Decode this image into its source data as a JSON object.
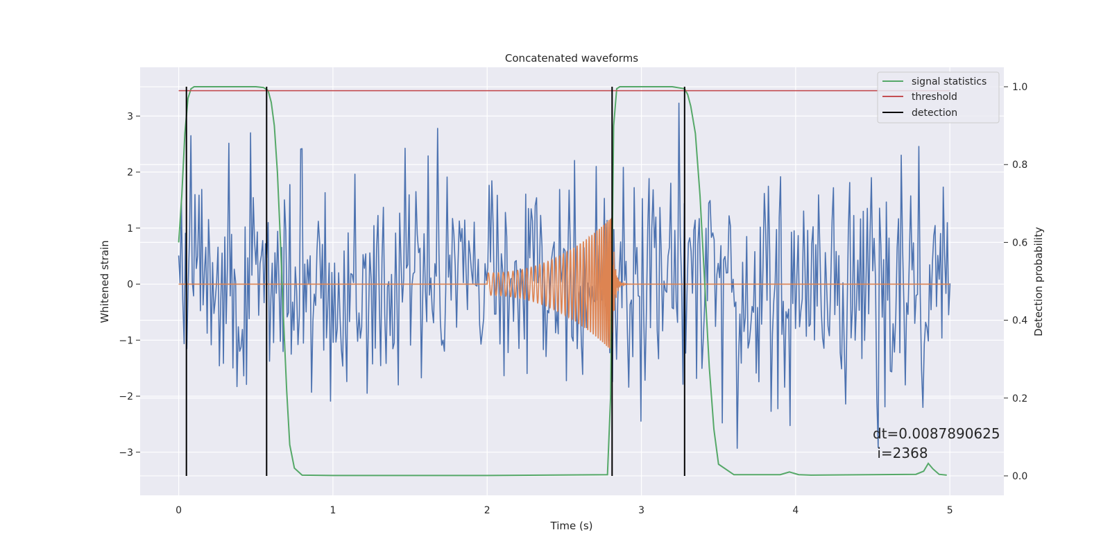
{
  "chart_data": {
    "type": "line",
    "title": "Concatenated waveforms",
    "xlabel": "Time (s)",
    "ylabel_left": "Whitened strain",
    "ylabel_right": "Detection probability",
    "xlim": [
      -0.25,
      5.35
    ],
    "ylim_left": [
      -3.77,
      3.87
    ],
    "ylim_right": [
      -0.05,
      1.05
    ],
    "x_ticks": [
      0,
      1,
      2,
      3,
      4,
      5
    ],
    "y_ticks_left": [
      -3,
      -2,
      -1,
      0,
      1,
      2,
      3
    ],
    "y_ticks_right": [
      0.0,
      0.2,
      0.4,
      0.6,
      0.8,
      1.0
    ],
    "x_tick_labels": [
      "0",
      "1",
      "2",
      "3",
      "4",
      "5"
    ],
    "y_tick_labels_left": [
      "−3",
      "−2",
      "−1",
      "0",
      "1",
      "2",
      "3"
    ],
    "y_tick_labels_right": [
      "0.0",
      "0.2",
      "0.4",
      "0.6",
      "0.8",
      "1.0"
    ],
    "grid": true,
    "legend_position": "top-right",
    "colors": {
      "noise": "#4c72b0",
      "waveform": "#dd8452",
      "signal_statistics": "#55a868",
      "threshold": "#c44e52",
      "detection": "#000000",
      "axes_bg": "#eaeaf2",
      "grid": "#ffffff"
    },
    "series": [
      {
        "name": "signal statistics",
        "axis": "right",
        "x": [
          0.0,
          0.02,
          0.04,
          0.06,
          0.08,
          0.1,
          0.5,
          0.55,
          0.58,
          0.6,
          0.62,
          0.64,
          0.66,
          0.68,
          0.7,
          0.72,
          0.75,
          0.8,
          1.0,
          2.0,
          2.78,
          2.8,
          2.82,
          2.84,
          2.86,
          3.2,
          3.28,
          3.3,
          3.32,
          3.35,
          3.38,
          3.41,
          3.44,
          3.47,
          3.5,
          3.6,
          3.9,
          3.96,
          4.02,
          4.1,
          4.78,
          4.83,
          4.86,
          4.89,
          4.93,
          4.98
        ],
        "y": [
          0.6,
          0.72,
          0.88,
          0.97,
          0.995,
          1.0,
          1.0,
          0.998,
          0.99,
          0.96,
          0.9,
          0.78,
          0.6,
          0.4,
          0.22,
          0.08,
          0.02,
          0.002,
          0.001,
          0.001,
          0.003,
          0.2,
          0.9,
          0.995,
          1.0,
          1.0,
          0.995,
          0.98,
          0.95,
          0.88,
          0.72,
          0.5,
          0.28,
          0.12,
          0.03,
          0.003,
          0.003,
          0.01,
          0.003,
          0.002,
          0.004,
          0.012,
          0.032,
          0.018,
          0.004,
          0.002
        ]
      },
      {
        "name": "threshold",
        "axis": "right",
        "x": [
          0.0,
          5.0
        ],
        "y": [
          0.99,
          0.99
        ]
      },
      {
        "name": "detection",
        "axis": "right",
        "type": "vlines",
        "x": [
          0.05,
          0.57,
          2.81,
          3.28
        ],
        "ymin": 0.0,
        "ymax": 1.0
      }
    ],
    "unlabeled_series": [
      {
        "kind": "noise",
        "axis": "left",
        "x_range": [
          0.0,
          5.0
        ],
        "dt": 0.0087890625,
        "amplitude_range": [
          -3.5,
          3.5
        ]
      },
      {
        "kind": "waveform",
        "axis": "left",
        "x_start": 2.0,
        "x_merge": 2.81,
        "x_end": 3.0,
        "amplitude_start": 0.2,
        "amplitude_peak": 1.2
      }
    ],
    "annotation": {
      "line1": "dt=0.0087890625",
      "line2": " i=2368"
    }
  }
}
